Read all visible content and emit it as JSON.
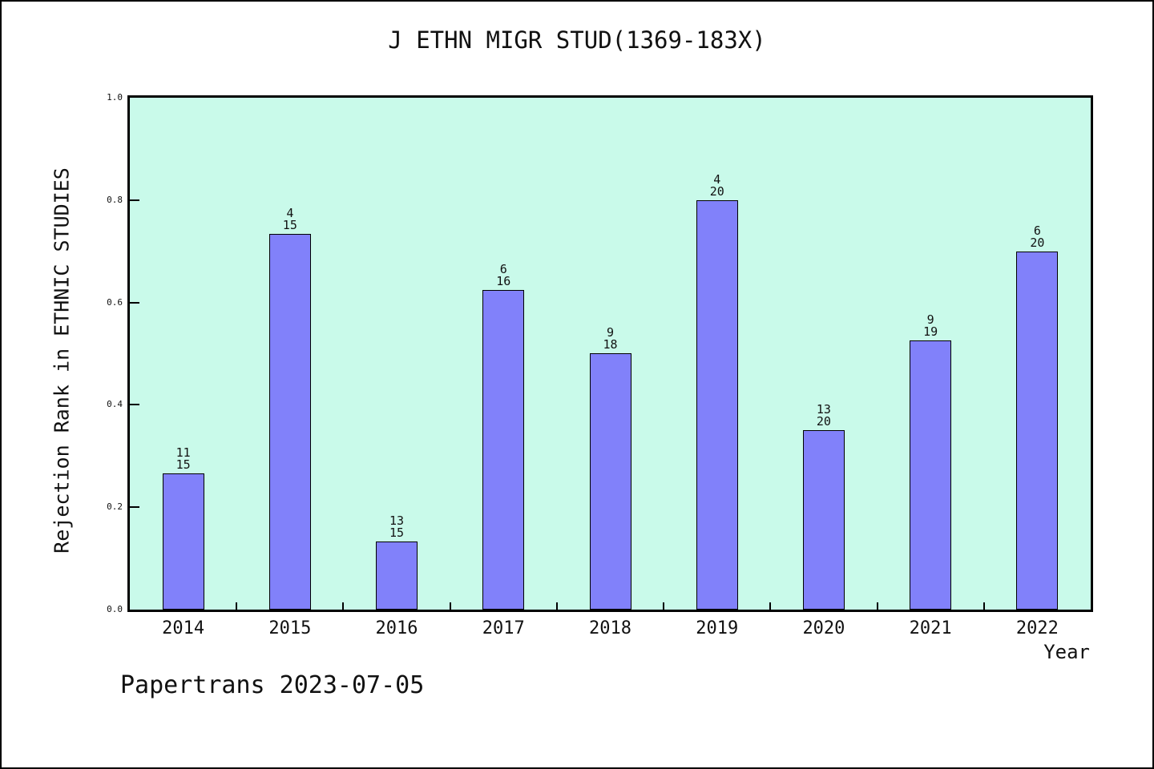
{
  "footer": {
    "text": "Papertrans 2023-07-05"
  },
  "chart_data": {
    "type": "bar",
    "title": "J ETHN MIGR STUD(1369-183X)",
    "xlabel": "Year",
    "ylabel": "Rejection Rank in ETHNIC STUDIES",
    "categories": [
      "2014",
      "2015",
      "2016",
      "2017",
      "2018",
      "2019",
      "2020",
      "2021",
      "2022"
    ],
    "values": [
      0.2667,
      0.7333,
      0.1333,
      0.625,
      0.5,
      0.8,
      0.35,
      0.5263,
      0.7
    ],
    "bar_labels": [
      [
        "11",
        "15"
      ],
      [
        "4",
        "15"
      ],
      [
        "13",
        "15"
      ],
      [
        "6",
        "16"
      ],
      [
        "9",
        "18"
      ],
      [
        "4",
        "20"
      ],
      [
        "13",
        "20"
      ],
      [
        "9",
        "19"
      ],
      [
        "6",
        "20"
      ]
    ],
    "ylim": [
      0.0,
      1.0
    ],
    "yticks": [
      0.0,
      0.2,
      0.4,
      0.6,
      0.8,
      1.0
    ],
    "grid": false,
    "legend_position": "none",
    "colors": {
      "bar_fill": "#8181fa",
      "bar_edge": "#000000",
      "plot_bg": "#c9faea",
      "axis": "#000000",
      "canvas_bg": "#ffffff"
    }
  }
}
